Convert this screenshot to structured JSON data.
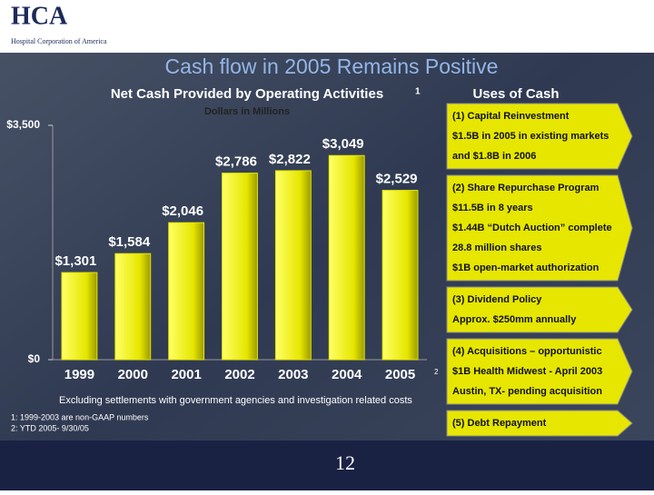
{
  "header": {
    "logo": "HCA",
    "company": "Hospital Corporation of America"
  },
  "title": "Cash flow in 2005 Remains Positive",
  "chart_data": {
    "type": "bar",
    "title": "Net Cash Provided by Operating Activities",
    "title_note": "1",
    "subtitle": "Dollars in Millions",
    "categories": [
      "1999",
      "2000",
      "2001",
      "2002",
      "2003",
      "2004",
      "2005"
    ],
    "category_note": "2",
    "values": [
      1301,
      1584,
      2046,
      2786,
      2822,
      3049,
      2529
    ],
    "value_labels": [
      "$1,301",
      "$1,584",
      "$2,046",
      "$2,786",
      "$2,822",
      "$3,049",
      "$2,529"
    ],
    "color": "#e6e600",
    "ylim": [
      0,
      3500
    ],
    "yticks": [
      {
        "value": 0,
        "label": "$0"
      },
      {
        "value": 3500,
        "label": "$3,500"
      }
    ],
    "grid": false
  },
  "uses_of_cash": {
    "title": "Uses of Cash",
    "items": [
      {
        "heading": "(1) Capital Reinvestment",
        "lines": [
          "$1.5B in 2005 in existing markets",
          "and $1.8B in 2006"
        ]
      },
      {
        "heading": "(2) Share Repurchase Program",
        "lines": [
          "$11.5B in 8 years",
          "$1.44B “Dutch Auction” complete",
          "28.8 million shares",
          "$1B open-market authorization"
        ]
      },
      {
        "heading": "(3) Dividend Policy",
        "lines": [
          "Approx. $250mm annually"
        ]
      },
      {
        "heading": "(4) Acquisitions – opportunistic",
        "lines": [
          "$1B Health Midwest - April 2003",
          "Austin, TX- pending acquisition"
        ]
      },
      {
        "heading": "(5) Debt Repayment",
        "lines": []
      }
    ]
  },
  "note": "Excluding settlements with government agencies and investigation related costs",
  "footnotes": [
    "1:  1999-2003 are non-GAAP numbers",
    "2:  YTD 2005- 9/30/05"
  ],
  "page_number": "12"
}
